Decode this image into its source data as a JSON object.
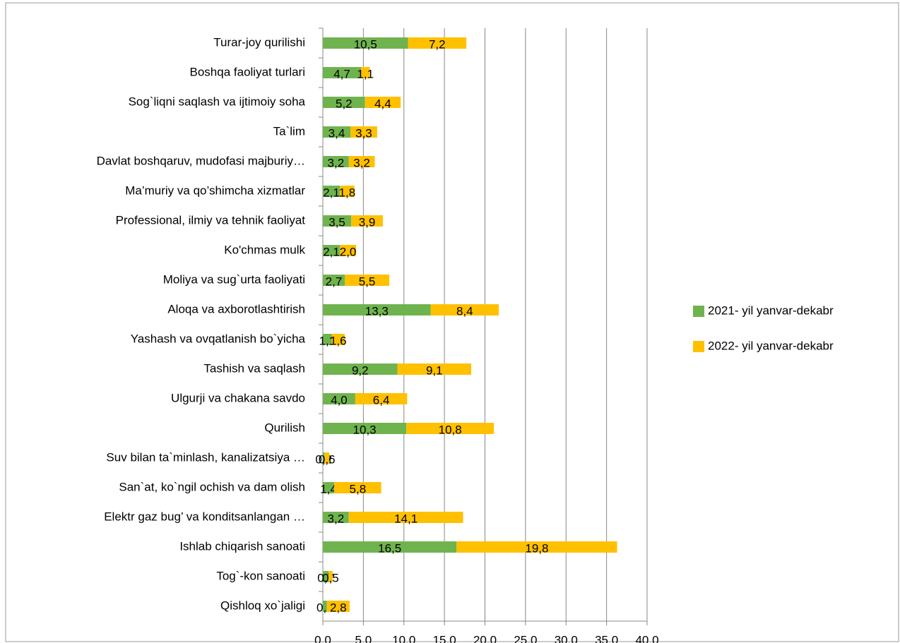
{
  "chart_data": {
    "type": "bar",
    "orientation": "horizontal",
    "stacked": true,
    "categories": [
      "Turar-joy qurilishi",
      "Boshqa faoliyat turlari",
      "Sog`liqni saqlash va ijtimoiy soha",
      "Ta`lim",
      "Davlat boshqaruv, mudofasi majburiy…",
      "Ma’muriy va qo’shimcha xizmatlar",
      "Professional, ilmiy va tehnik faoliyat",
      "Ko'chmas mulk",
      "Moliya va sug`urta faoliyati",
      "Aloqa va axborotlashtirish",
      "Yashash va ovqatlanish bo`yicha",
      "Tashish va saqlash",
      "Ulgurji va chakana savdo",
      "Qurilish",
      "Suv bilan ta`minlash, kanalizatsiya …",
      "San`at, ko`ngil ochish va dam olish",
      "Elektr gaz bug’ va konditsanlangan …",
      "Ishlab chiqarish sanoati",
      "Tog`-kon sanoati",
      "Qishloq xo`jaligi"
    ],
    "series": [
      {
        "name": "2021- yil yanvar-dekabr",
        "color": "#6fb34f",
        "values": [
          10.5,
          4.7,
          5.2,
          3.4,
          3.2,
          2.1,
          3.5,
          2.1,
          2.7,
          13.3,
          1.1,
          9.2,
          4.0,
          10.3,
          0.2,
          1.4,
          3.2,
          16.5,
          0.7,
          0.5
        ],
        "value_labels": [
          "10,5",
          "4,7",
          "5,2",
          "3,4",
          "3,2",
          "2,1",
          "3,5",
          "2,1",
          "2,7",
          "13,3",
          "1,1",
          "9,2",
          "4,0",
          "10,3",
          "0,2",
          "1,4",
          "3,2",
          "16,5",
          "0,7",
          "0,5"
        ]
      },
      {
        "name": "2022- yil yanvar-dekabr",
        "color": "#ffc000",
        "values": [
          7.2,
          1.1,
          4.4,
          3.3,
          3.2,
          1.8,
          3.9,
          2.0,
          5.5,
          8.4,
          1.6,
          9.1,
          6.4,
          10.8,
          0.6,
          5.8,
          14.1,
          19.8,
          0.5,
          2.8
        ],
        "value_labels": [
          "7,2",
          "1,1",
          "4,4",
          "3,3",
          "3,2",
          "1,8",
          "3,9",
          "2,0",
          "5,5",
          "8,4",
          "1,6",
          "9,1",
          "6,4",
          "10,8",
          "0,6",
          "5,8",
          "14,1",
          "19,8",
          "0,5",
          "2,8"
        ]
      }
    ],
    "xlim": [
      0,
      40
    ],
    "xticks": [
      {
        "value": 0,
        "label": "0,0"
      },
      {
        "value": 5,
        "label": "5,0"
      },
      {
        "value": 10,
        "label": "10,0"
      },
      {
        "value": 15,
        "label": "15,0"
      },
      {
        "value": 20,
        "label": "20,0"
      },
      {
        "value": 25,
        "label": "25,0"
      },
      {
        "value": 30,
        "label": "30,0"
      },
      {
        "value": 35,
        "label": "35,0"
      },
      {
        "value": 40,
        "label": "40,0"
      }
    ],
    "grid": true,
    "legend": "right"
  }
}
